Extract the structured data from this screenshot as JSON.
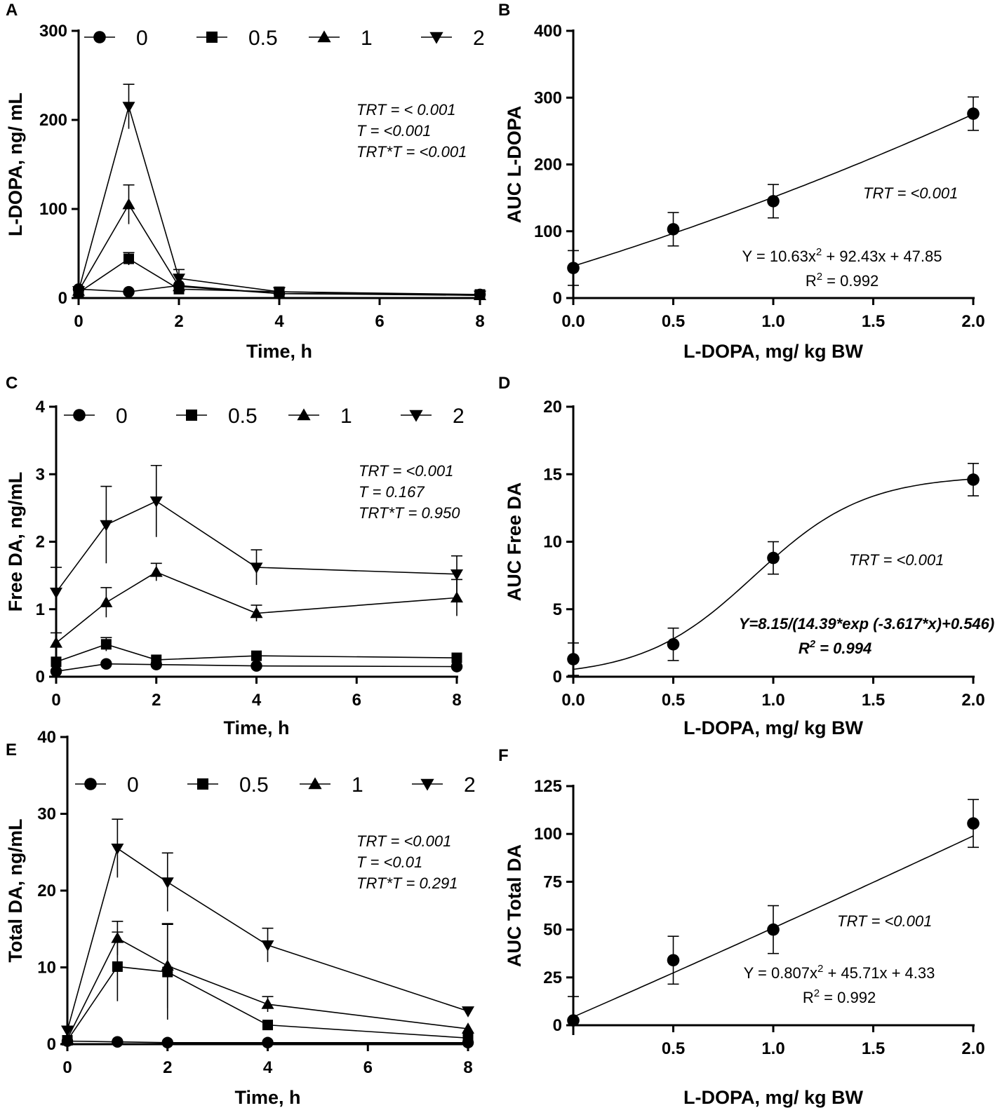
{
  "figure": {
    "panels": [
      "A",
      "B",
      "C",
      "D",
      "E",
      "F"
    ]
  },
  "chart_data": [
    {
      "id": "A",
      "type": "line",
      "xlabel": "Time, h",
      "ylabel": "L-DOPA, ng/ mL",
      "xlim": [
        0,
        8
      ],
      "ylim": [
        0,
        300
      ],
      "xticks": [
        0,
        2,
        4,
        6,
        8
      ],
      "yticks": [
        0,
        100,
        200,
        300
      ],
      "legend": [
        "0",
        "0.5",
        "1",
        "2"
      ],
      "x": [
        0,
        1,
        2,
        4,
        8
      ],
      "series": [
        {
          "name": "0",
          "marker": "circle",
          "values": [
            10,
            7,
            14,
            5,
            4
          ],
          "err": [
            0,
            0,
            0,
            0,
            0
          ]
        },
        {
          "name": "0.5",
          "marker": "square",
          "values": [
            6,
            44,
            10,
            7,
            4
          ],
          "err": [
            0,
            7,
            0,
            0,
            0
          ]
        },
        {
          "name": "1",
          "marker": "triangle-up",
          "values": [
            8,
            105,
            13,
            5,
            3
          ],
          "err": [
            0,
            22,
            0,
            0,
            0
          ]
        },
        {
          "name": "2",
          "marker": "triangle-down",
          "values": [
            8,
            215,
            22,
            7,
            3
          ],
          "err": [
            0,
            25,
            10,
            0,
            0
          ]
        }
      ],
      "stats": [
        "TRT = < 0.001",
        "T = <0.001",
        "TRT*T = <0.001"
      ]
    },
    {
      "id": "B",
      "type": "scatter",
      "xlabel": "L-DOPA, mg/ kg BW",
      "ylabel": "AUC L-DOPA",
      "xlim": [
        0,
        2
      ],
      "ylim": [
        0,
        400
      ],
      "xticks": [
        0.0,
        0.5,
        1.0,
        1.5,
        2.0
      ],
      "xtick_labels": [
        "0.0",
        "0.5",
        "1.0",
        "1.5",
        "2.0"
      ],
      "yticks": [
        0,
        100,
        200,
        300,
        400
      ],
      "x": [
        0,
        0.5,
        1.0,
        2.0
      ],
      "values": [
        45,
        103,
        145,
        276
      ],
      "err": [
        26,
        25,
        25,
        25
      ],
      "fit": {
        "kind": "quadratic",
        "a": 10.63,
        "b": 92.43,
        "c": 47.85
      },
      "stats": [
        "TRT = <0.001"
      ],
      "equation": {
        "main": "Y = 10.63x",
        "sup": "2",
        "rest": " + 92.43x + 47.85",
        "r2_label": "R",
        "r2_sup": "2",
        "r2_rest": " = 0.992"
      }
    },
    {
      "id": "C",
      "type": "line",
      "xlabel": "Time, h",
      "ylabel": "Free DA, ng/mL",
      "xlim": [
        0,
        8
      ],
      "ylim": [
        0,
        4
      ],
      "xticks": [
        0,
        2,
        4,
        6,
        8
      ],
      "yticks": [
        0,
        1,
        2,
        3,
        4
      ],
      "legend": [
        "0",
        "0.5",
        "1",
        "2"
      ],
      "x": [
        0,
        1,
        2,
        4,
        8
      ],
      "series": [
        {
          "name": "0",
          "marker": "circle",
          "values": [
            0.08,
            0.19,
            0.18,
            0.16,
            0.15
          ],
          "err": [
            0,
            0,
            0,
            0,
            0
          ]
        },
        {
          "name": "0.5",
          "marker": "square",
          "values": [
            0.22,
            0.48,
            0.25,
            0.31,
            0.28
          ],
          "err": [
            0,
            0.1,
            0,
            0,
            0
          ]
        },
        {
          "name": "1",
          "marker": "triangle-up",
          "values": [
            0.5,
            1.1,
            1.55,
            0.94,
            1.17
          ],
          "err": [
            0.15,
            0.22,
            0.13,
            0.12,
            0.27
          ]
        },
        {
          "name": "2",
          "marker": "triangle-down",
          "values": [
            1.25,
            2.25,
            2.6,
            1.62,
            1.52
          ],
          "err": [
            0.37,
            0.57,
            0.53,
            0.26,
            0.27
          ]
        }
      ],
      "stats": [
        "TRT = <0.001",
        "T = 0.167",
        "TRT*T = 0.950"
      ]
    },
    {
      "id": "D",
      "type": "scatter",
      "xlabel": "L-DOPA, mg/ kg BW",
      "ylabel": "AUC Free DA",
      "xlim": [
        0,
        2
      ],
      "ylim": [
        0,
        20
      ],
      "xticks": [
        0.0,
        0.5,
        1.0,
        1.5,
        2.0
      ],
      "xtick_labels": [
        "0.0",
        "0.5",
        "1.0",
        "1.5",
        "2.0"
      ],
      "yticks": [
        0,
        5,
        10,
        15,
        20
      ],
      "x": [
        0,
        0.5,
        1.0,
        2.0
      ],
      "values": [
        1.3,
        2.4,
        8.8,
        14.6
      ],
      "err": [
        1.2,
        1.2,
        1.2,
        1.2
      ],
      "fit": {
        "kind": "logistic",
        "a": 8.15,
        "b": 14.39,
        "k": -3.617,
        "c": 0.546
      },
      "stats": [
        "TRT = <0.001"
      ],
      "equation": {
        "main": "Y=8.15/(14.39*exp (-3.617*x)+0.546)",
        "sup": "",
        "rest": "",
        "r2_label": "R",
        "r2_sup": "2",
        "r2_rest": " = 0.994"
      }
    },
    {
      "id": "E",
      "type": "line",
      "xlabel": "Time, h",
      "ylabel": "Total DA, ng/mL",
      "xlim": [
        0,
        8
      ],
      "ylim": [
        0,
        40
      ],
      "xticks": [
        0,
        2,
        4,
        6,
        8
      ],
      "yticks": [
        0,
        10,
        20,
        30,
        40
      ],
      "legend": [
        "0",
        "0.5",
        "1",
        "2"
      ],
      "x": [
        0,
        1,
        2,
        4,
        8
      ],
      "series": [
        {
          "name": "0",
          "marker": "circle",
          "values": [
            0.4,
            0.3,
            0.2,
            0.2,
            0.2
          ],
          "err": [
            0,
            0,
            0,
            0,
            0
          ]
        },
        {
          "name": "0.5",
          "marker": "square",
          "values": [
            0.5,
            10.1,
            9.4,
            2.5,
            0.8
          ],
          "err": [
            0,
            4.5,
            6.2,
            0,
            0
          ]
        },
        {
          "name": "1",
          "marker": "triangle-up",
          "values": [
            0.7,
            13.8,
            10.2,
            5.2,
            2.0
          ],
          "err": [
            0,
            2.2,
            5.5,
            1.0,
            0
          ]
        },
        {
          "name": "2",
          "marker": "triangle-down",
          "values": [
            1.8,
            25.5,
            21.1,
            12.9,
            4.3
          ],
          "err": [
            0,
            3.8,
            3.8,
            2.2,
            0
          ]
        }
      ],
      "stats": [
        "TRT = <0.001",
        " T = <0.01",
        "TRT*T = 0.291"
      ]
    },
    {
      "id": "F",
      "type": "scatter",
      "xlabel": "L-DOPA, mg/ kg BW",
      "ylabel": "AUC Total DA",
      "xlim": [
        0,
        2
      ],
      "ylim": [
        0,
        125
      ],
      "xticks": [
        0.5,
        1.0,
        1.5,
        2.0
      ],
      "xtick_labels": [
        "0.5",
        "1.0",
        "1.5",
        "2.0"
      ],
      "yticks": [
        0,
        25,
        50,
        75,
        100,
        125
      ],
      "x": [
        0,
        0.5,
        1.0,
        2.0
      ],
      "values": [
        2.5,
        34,
        50,
        105.5
      ],
      "err": [
        12.5,
        12.5,
        12.5,
        12.5
      ],
      "fit": {
        "kind": "quadratic",
        "a": 0.807,
        "b": 45.71,
        "c": 4.33
      },
      "stats": [
        "TRT = <0.001"
      ],
      "equation": {
        "main": "Y = 0.807x",
        "sup": "2",
        "rest": " + 45.71x + 4.33",
        "r2_label": "R",
        "r2_sup": "2",
        "r2_rest": " = 0.992"
      }
    }
  ]
}
